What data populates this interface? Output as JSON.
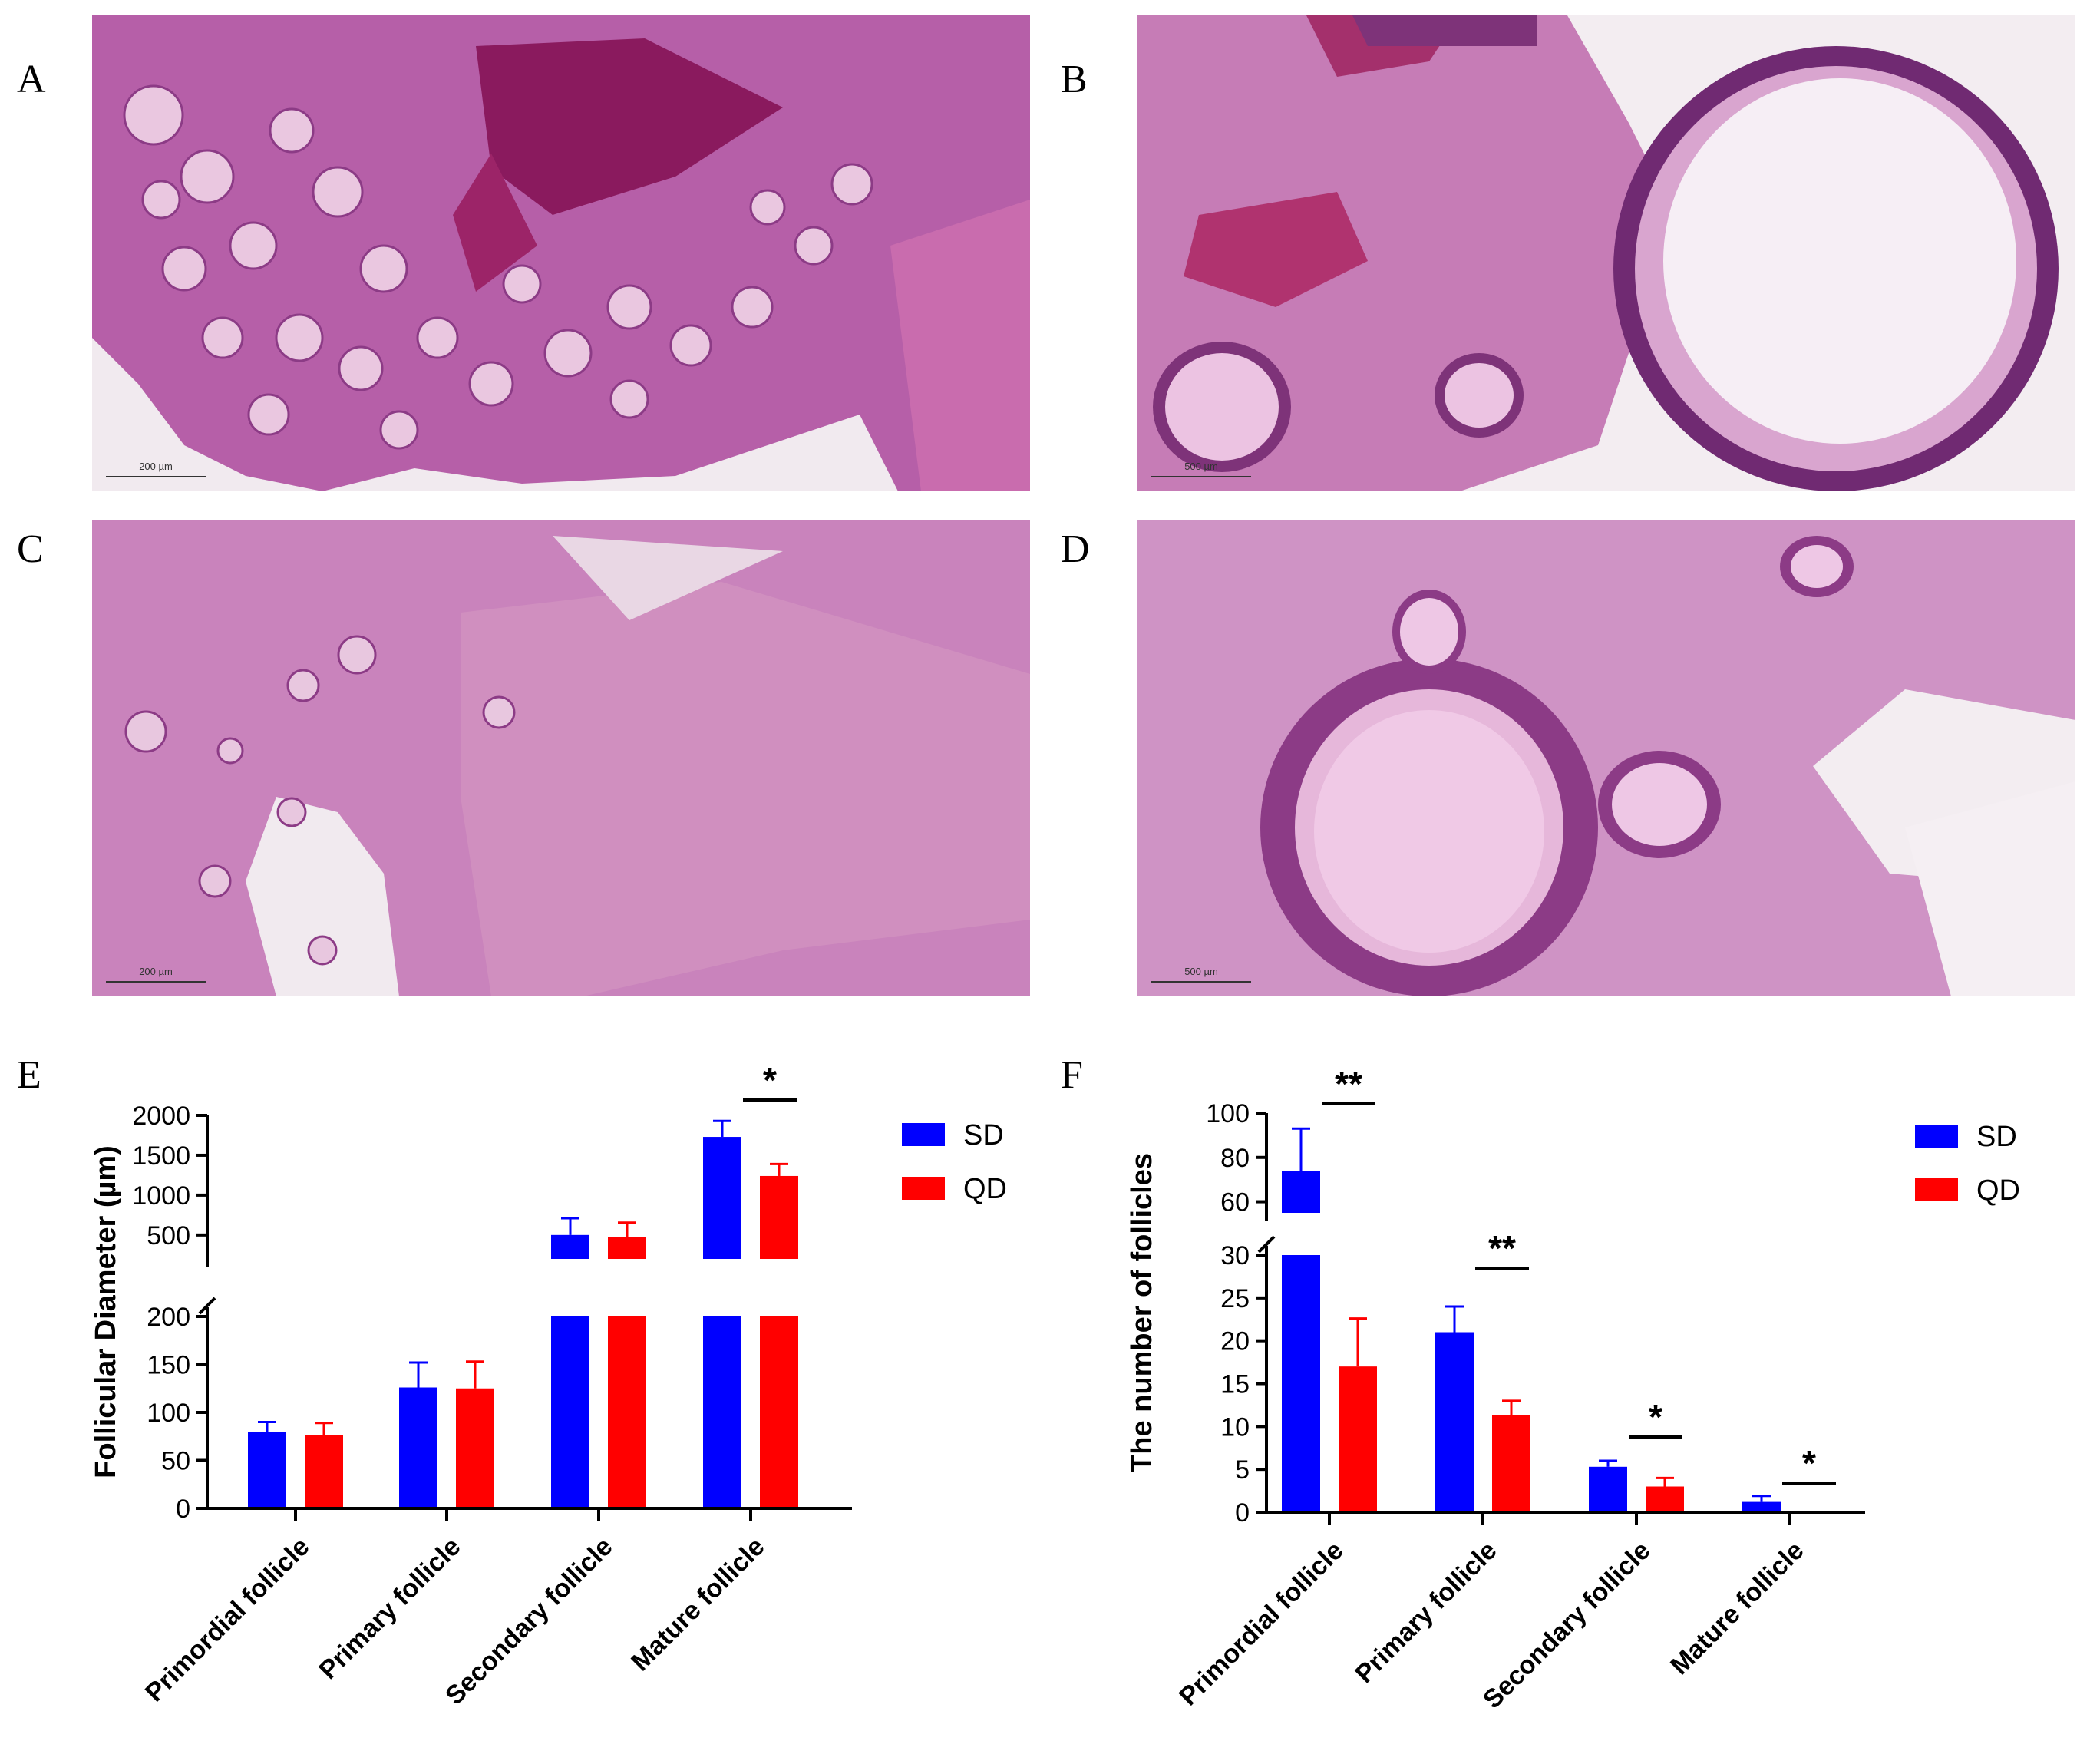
{
  "panels": {
    "A": {
      "letter": "A",
      "scale_label": "200 µm"
    },
    "B": {
      "letter": "B",
      "scale_label": "500 µm"
    },
    "C": {
      "letter": "C",
      "scale_label": "200 µm"
    },
    "D": {
      "letter": "D",
      "scale_label": "500 µm"
    },
    "E": {
      "letter": "E"
    },
    "F": {
      "letter": "F"
    }
  },
  "chart_data": [
    {
      "type": "bar",
      "panel": "E",
      "ylabel": "Follicular Diameter (µm)",
      "categories": [
        "Primordial follicle",
        "Primary follicle",
        "Secondary follicle",
        "Mature follicle"
      ],
      "series": [
        {
          "name": "SD",
          "color": "#0000ff",
          "values": [
            80,
            126,
            500,
            1730
          ],
          "errors": [
            10,
            26,
            210,
            200
          ]
        },
        {
          "name": "QD",
          "color": "#ff0000",
          "values": [
            76,
            125,
            475,
            1240
          ],
          "errors": [
            13,
            28,
            180,
            150
          ]
        }
      ],
      "y_axis_broken": true,
      "y_lower_range": [
        0,
        200
      ],
      "y_upper_range": [
        200,
        2000
      ],
      "y_lower_ticks": [
        "0",
        "50",
        "100",
        "150",
        "200"
      ],
      "y_upper_ticks": [
        "500",
        "1000",
        "1500",
        "2000"
      ],
      "significance": [
        {
          "category": "Mature follicle",
          "label": "*"
        }
      ],
      "legend_position": "right"
    },
    {
      "type": "bar",
      "panel": "F",
      "ylabel": "The number of follicles",
      "categories": [
        "Primordial follicle",
        "Primary follicle",
        "Secondary follicle",
        "Mature follicle"
      ],
      "series": [
        {
          "name": "SD",
          "color": "#0000ff",
          "values": [
            74,
            21,
            5.3,
            1.2
          ],
          "errors": [
            19,
            3,
            0.7,
            0.7
          ]
        },
        {
          "name": "QD",
          "color": "#ff0000",
          "values": [
            17,
            11.3,
            3,
            0
          ],
          "errors": [
            5.6,
            1.7,
            1,
            0
          ]
        }
      ],
      "y_axis_broken": true,
      "y_lower_range": [
        0,
        30
      ],
      "y_upper_range": [
        55,
        100
      ],
      "y_lower_ticks": [
        "0",
        "5",
        "10",
        "15",
        "20",
        "25",
        "30"
      ],
      "y_upper_ticks": [
        "60",
        "80",
        "100"
      ],
      "significance": [
        {
          "category": "Primordial follicle",
          "label": "**"
        },
        {
          "category": "Primary follicle",
          "label": "**"
        },
        {
          "category": "Secondary follicle",
          "label": "*"
        },
        {
          "category": "Mature follicle",
          "label": "*"
        }
      ],
      "legend_position": "right"
    }
  ]
}
